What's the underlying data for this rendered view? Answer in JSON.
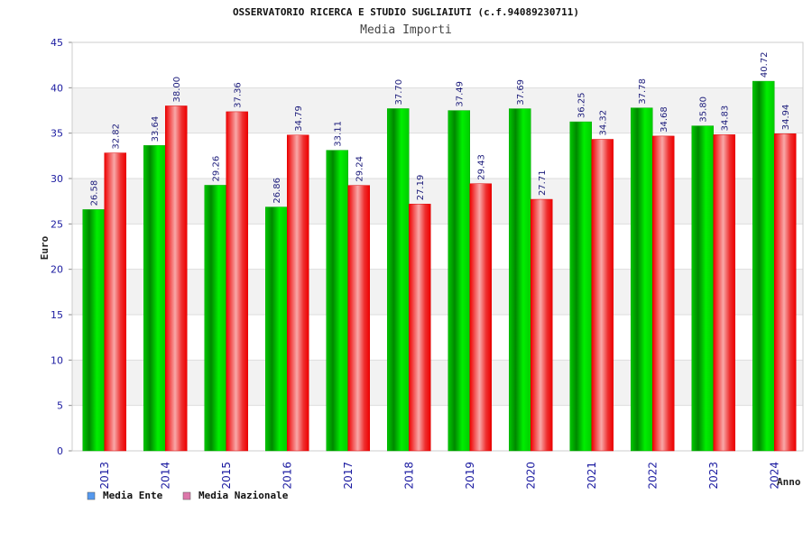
{
  "chart_data": {
    "type": "bar",
    "title": "OSSERVATORIO RICERCA E STUDIO SUGLIAIUTI (c.f.94089230711)",
    "subtitle": "Media Importi",
    "xlabel": "Anno",
    "ylabel": "Euro",
    "ylim": [
      0,
      45
    ],
    "yticks": [
      0,
      5,
      10,
      15,
      20,
      25,
      30,
      35,
      40,
      45
    ],
    "grid": true,
    "legend_position": "bottom-left",
    "categories": [
      "2013",
      "2014",
      "2015",
      "2016",
      "2017",
      "2018",
      "2019",
      "2020",
      "2021",
      "2022",
      "2023",
      "2024"
    ],
    "series": [
      {
        "name": "Media Ente",
        "color": "#00aa00",
        "legend_color": "#5599ee",
        "values": [
          26.58,
          33.64,
          29.26,
          26.86,
          33.11,
          37.7,
          37.49,
          37.69,
          36.25,
          37.78,
          35.8,
          40.72
        ],
        "labels": [
          "26.58",
          "33.64",
          "29.26",
          "26.86",
          "33.11",
          "37.70",
          "37.49",
          "37.69",
          "36.25",
          "37.78",
          "35.80",
          "40.72"
        ]
      },
      {
        "name": "Media Nazionale",
        "color": "#ee0000",
        "legend_color": "#dd77aa",
        "values": [
          32.82,
          38.0,
          37.36,
          34.79,
          29.24,
          27.19,
          29.43,
          27.71,
          34.32,
          34.68,
          34.83,
          34.94
        ],
        "labels": [
          "32.82",
          "38.00",
          "37.36",
          "34.79",
          "29.24",
          "27.19",
          "29.43",
          "27.71",
          "34.32",
          "34.68",
          "34.83",
          "34.94"
        ]
      }
    ]
  }
}
